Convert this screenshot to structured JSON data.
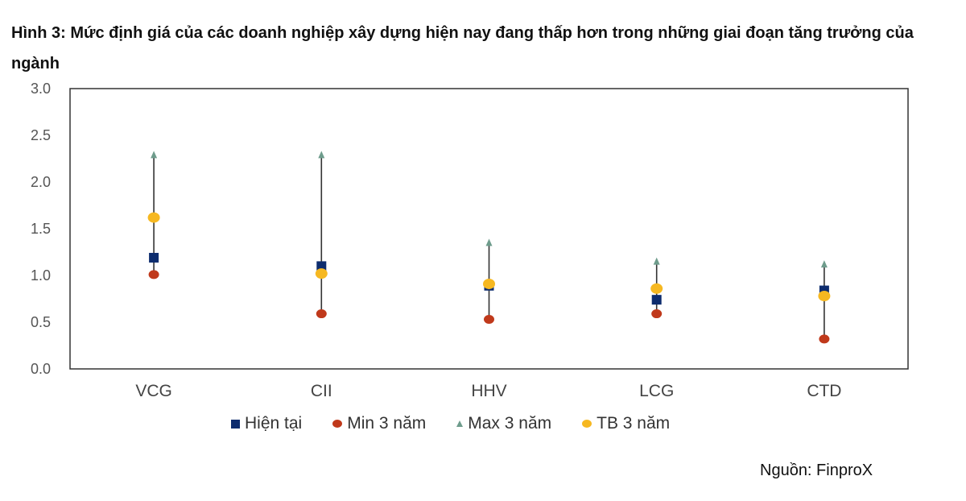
{
  "figure": {
    "title": "Hình 3: Mức định giá của các doanh nghiệp xây dựng hiện nay đang thấp hơn trong những giai đoạn tăng trưởng của ngành",
    "source": "Nguồn: FinproX"
  },
  "chart_data": {
    "type": "scatter",
    "categories": [
      "VCG",
      "CII",
      "HHV",
      "LCG",
      "CTD"
    ],
    "series": [
      {
        "name": "Hiện tại",
        "values": [
          1.19,
          1.1,
          0.89,
          0.74,
          0.84
        ],
        "color": "#0d2c6e",
        "marker": "square"
      },
      {
        "name": "Min 3 năm",
        "values": [
          1.01,
          0.59,
          0.53,
          0.59,
          0.32
        ],
        "color": "#c0391b",
        "marker": "circle"
      },
      {
        "name": "Max 3 năm",
        "values": [
          2.29,
          2.29,
          1.35,
          1.15,
          1.12
        ],
        "color": "#6e9c8c",
        "marker": "triangle"
      },
      {
        "name": "TB 3 năm",
        "values": [
          1.62,
          1.02,
          0.91,
          0.86,
          0.78
        ],
        "color": "#f6b821",
        "marker": "circle"
      }
    ],
    "range_lines": {
      "from_series": "Min 3 năm",
      "to_series": "Max 3 năm",
      "color": "#333333"
    },
    "yticks": [
      "0.0",
      "0.5",
      "1.0",
      "1.5",
      "2.0",
      "2.5",
      "3.0"
    ],
    "ylim": [
      0,
      3
    ],
    "xlabel": "",
    "ylabel": "",
    "grid": false,
    "legend_position": "bottom"
  }
}
